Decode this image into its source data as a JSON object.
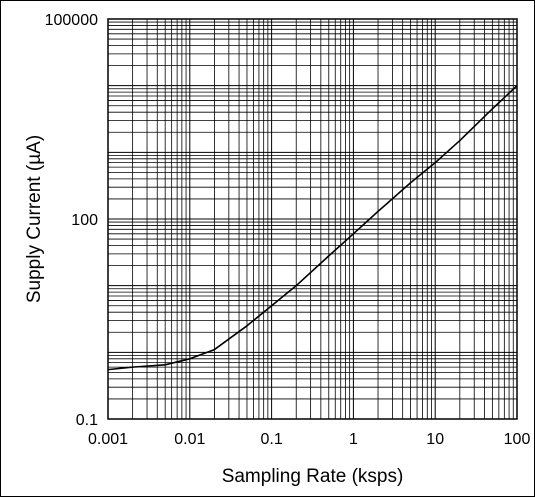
{
  "chart_data": {
    "type": "line",
    "title": "",
    "xlabel": "Sampling Rate (ksps)",
    "ylabel": "Supply Current (µA)",
    "x_scale": "log",
    "y_scale": "log",
    "xlim": [
      0.001,
      100
    ],
    "ylim": [
      0.1,
      100000
    ],
    "x_ticks": [
      {
        "value": 0.001,
        "label": "0.001"
      },
      {
        "value": 0.01,
        "label": "0.01"
      },
      {
        "value": 0.1,
        "label": "0.1"
      },
      {
        "value": 1,
        "label": "1"
      },
      {
        "value": 10,
        "label": "10"
      },
      {
        "value": 100,
        "label": "100"
      }
    ],
    "y_ticks": [
      {
        "value": 0.1,
        "label": "0.1"
      },
      {
        "value": 100,
        "label": "100"
      },
      {
        "value": 100000,
        "label": "100000"
      }
    ],
    "grid": true,
    "series": [
      {
        "x": [
          0.001,
          0.002,
          0.005,
          0.01,
          0.02,
          0.05,
          0.1,
          0.2,
          0.5,
          1,
          2,
          5,
          10,
          20,
          50,
          100
        ],
        "y": [
          0.55,
          0.6,
          0.65,
          0.8,
          1.1,
          2.5,
          5,
          10,
          28,
          60,
          130,
          350,
          700,
          1500,
          4500,
          10000
        ]
      }
    ],
    "legend": "none"
  }
}
